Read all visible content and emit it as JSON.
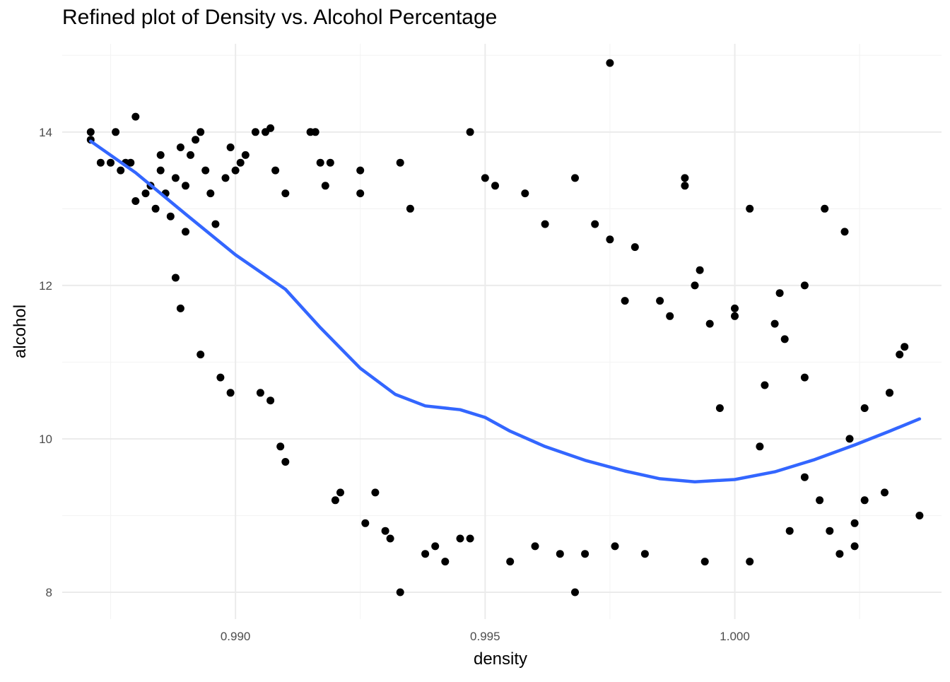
{
  "chart_data": {
    "type": "scatter",
    "title": "Refined plot of Density vs. Alcohol Percentage",
    "xlabel": "density",
    "ylabel": "alcohol",
    "xlim": [
      0.98653,
      1.00414
    ],
    "ylim": [
      7.65,
      15.15
    ],
    "x_ticks": [
      0.99,
      0.995,
      1.0
    ],
    "x_tick_labels": [
      "0.990",
      "0.995",
      "1.000"
    ],
    "y_ticks": [
      8,
      10,
      12,
      14
    ],
    "y_tick_labels": [
      "8",
      "10",
      "12",
      "14"
    ],
    "x_minor_ticks": [
      0.9875,
      0.9925,
      0.9975,
      1.0025
    ],
    "y_minor_ticks": [
      9,
      11,
      13,
      15
    ],
    "grid": true,
    "legend": "none",
    "colors": {
      "points": "#000000",
      "smooth": "#3366FF",
      "grid_major": "#EBEBEB",
      "grid_minor": "#F4F4F4",
      "axis_text": "#4D4D4D"
    },
    "series": [
      {
        "type": "scatter",
        "points": [
          [
            0.9871,
            13.9
          ],
          [
            0.9871,
            14.0
          ],
          [
            0.9873,
            13.6
          ],
          [
            0.9875,
            13.6
          ],
          [
            0.9876,
            14.0
          ],
          [
            0.9877,
            13.5
          ],
          [
            0.9878,
            13.6
          ],
          [
            0.9879,
            13.6
          ],
          [
            0.988,
            13.1
          ],
          [
            0.988,
            14.2
          ],
          [
            0.9882,
            13.2
          ],
          [
            0.9883,
            13.3
          ],
          [
            0.9884,
            13.0
          ],
          [
            0.9885,
            13.5
          ],
          [
            0.9885,
            13.7
          ],
          [
            0.9886,
            13.2
          ],
          [
            0.9887,
            12.9
          ],
          [
            0.9888,
            13.4
          ],
          [
            0.9889,
            13.8
          ],
          [
            0.989,
            12.7
          ],
          [
            0.9888,
            12.1
          ],
          [
            0.9889,
            11.7
          ],
          [
            0.989,
            13.3
          ],
          [
            0.9891,
            13.7
          ],
          [
            0.9892,
            13.9
          ],
          [
            0.9893,
            14.0
          ],
          [
            0.9894,
            13.5
          ],
          [
            0.9895,
            13.2
          ],
          [
            0.9896,
            12.8
          ],
          [
            0.9893,
            11.1
          ],
          [
            0.9898,
            13.4
          ],
          [
            0.9899,
            13.8
          ],
          [
            0.99,
            13.5
          ],
          [
            0.9901,
            13.6
          ],
          [
            0.9902,
            13.7
          ],
          [
            0.9897,
            10.8
          ],
          [
            0.9899,
            10.6
          ],
          [
            0.9904,
            14.0
          ],
          [
            0.9906,
            14.0
          ],
          [
            0.9907,
            14.05
          ],
          [
            0.9908,
            13.5
          ],
          [
            0.991,
            13.2
          ],
          [
            0.9905,
            10.6
          ],
          [
            0.9907,
            10.5
          ],
          [
            0.9909,
            9.9
          ],
          [
            0.991,
            9.7
          ],
          [
            0.9915,
            14.0
          ],
          [
            0.9916,
            14.0
          ],
          [
            0.9917,
            13.6
          ],
          [
            0.9918,
            13.3
          ],
          [
            0.9919,
            13.6
          ],
          [
            0.992,
            9.2
          ],
          [
            0.9921,
            9.3
          ],
          [
            0.9925,
            13.5
          ],
          [
            0.9925,
            13.2
          ],
          [
            0.9926,
            8.9
          ],
          [
            0.9928,
            9.3
          ],
          [
            0.993,
            8.8
          ],
          [
            0.9931,
            8.7
          ],
          [
            0.9933,
            13.6
          ],
          [
            0.9933,
            8.0
          ],
          [
            0.9935,
            13.0
          ],
          [
            0.9938,
            8.5
          ],
          [
            0.994,
            8.6
          ],
          [
            0.9942,
            8.4
          ],
          [
            0.9945,
            8.7
          ],
          [
            0.9947,
            14.0
          ],
          [
            0.9947,
            8.7
          ],
          [
            0.995,
            13.4
          ],
          [
            0.9952,
            13.3
          ],
          [
            0.9955,
            8.4
          ],
          [
            0.9958,
            13.2
          ],
          [
            0.996,
            8.6
          ],
          [
            0.9962,
            12.8
          ],
          [
            0.9965,
            8.5
          ],
          [
            0.9968,
            13.4
          ],
          [
            0.9968,
            8.0
          ],
          [
            0.997,
            8.5
          ],
          [
            0.9972,
            12.8
          ],
          [
            0.9975,
            14.9
          ],
          [
            0.9975,
            12.6
          ],
          [
            0.9976,
            8.6
          ],
          [
            0.9978,
            11.8
          ],
          [
            0.998,
            12.5
          ],
          [
            0.9982,
            8.5
          ],
          [
            0.9985,
            11.8
          ],
          [
            0.9987,
            11.6
          ],
          [
            0.999,
            13.4
          ],
          [
            0.999,
            13.3
          ],
          [
            0.9992,
            12.0
          ],
          [
            0.9993,
            12.2
          ],
          [
            0.9994,
            8.4
          ],
          [
            0.9995,
            11.5
          ],
          [
            0.9997,
            10.4
          ],
          [
            1.0,
            11.7
          ],
          [
            1.0,
            11.6
          ],
          [
            1.0003,
            13.0
          ],
          [
            1.0003,
            8.4
          ],
          [
            1.0005,
            9.9
          ],
          [
            1.0006,
            10.7
          ],
          [
            1.0008,
            11.5
          ],
          [
            1.0009,
            11.9
          ],
          [
            1.001,
            11.3
          ],
          [
            1.0011,
            8.8
          ],
          [
            1.0014,
            12.0
          ],
          [
            1.0014,
            10.8
          ],
          [
            1.0014,
            9.5
          ],
          [
            1.0017,
            9.2
          ],
          [
            1.0019,
            8.8
          ],
          [
            1.0018,
            13.0
          ],
          [
            1.0021,
            8.5
          ],
          [
            1.0022,
            12.7
          ],
          [
            1.0023,
            10.0
          ],
          [
            1.0024,
            8.9
          ],
          [
            1.0024,
            8.6
          ],
          [
            1.0026,
            10.4
          ],
          [
            1.0026,
            9.2
          ],
          [
            1.003,
            9.3
          ],
          [
            1.0031,
            10.6
          ],
          [
            1.0031,
            10.6
          ],
          [
            1.0033,
            11.1
          ],
          [
            1.0034,
            11.2
          ],
          [
            1.0037,
            9.0
          ]
        ]
      },
      {
        "type": "line",
        "name": "",
        "points": [
          [
            0.9871,
            13.88
          ],
          [
            0.988,
            13.47
          ],
          [
            0.989,
            12.93
          ],
          [
            0.99,
            12.4
          ],
          [
            0.991,
            11.95
          ],
          [
            0.9917,
            11.45
          ],
          [
            0.9925,
            10.92
          ],
          [
            0.9932,
            10.58
          ],
          [
            0.9938,
            10.43
          ],
          [
            0.9945,
            10.38
          ],
          [
            0.995,
            10.28
          ],
          [
            0.9955,
            10.1
          ],
          [
            0.9962,
            9.9
          ],
          [
            0.997,
            9.72
          ],
          [
            0.9978,
            9.58
          ],
          [
            0.9985,
            9.48
          ],
          [
            0.9992,
            9.44
          ],
          [
            1.0,
            9.47
          ],
          [
            1.0008,
            9.57
          ],
          [
            1.0016,
            9.73
          ],
          [
            1.0024,
            9.92
          ],
          [
            1.0031,
            10.1
          ],
          [
            1.0037,
            10.26
          ]
        ]
      }
    ]
  }
}
